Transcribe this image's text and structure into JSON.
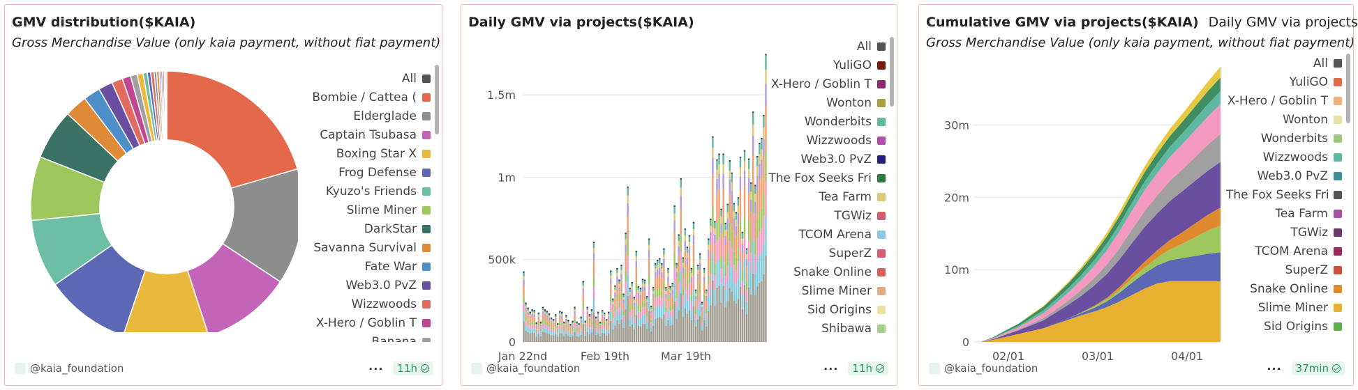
{
  "charts": {
    "gmv_distribution": {
      "title": "GMV distribution($KAIA)",
      "subtitle": "Gross Merchandise Value (only kaia payment, without fiat payment)",
      "legend": [
        {
          "label": "All",
          "color": "#555555"
        },
        {
          "label": "Bombie / Cattea (",
          "color": "#e4694a"
        },
        {
          "label": "Elderglade",
          "color": "#8e8e8e"
        },
        {
          "label": "Captain Tsubasa",
          "color": "#c364b8"
        },
        {
          "label": "Boxing Star X",
          "color": "#e8b93c"
        },
        {
          "label": "Frog Defense",
          "color": "#5d68b5"
        },
        {
          "label": "Kyuzo's Friends",
          "color": "#6cbfa5"
        },
        {
          "label": "Slime Miner",
          "color": "#9dc75c"
        },
        {
          "label": "DarkStar",
          "color": "#3a7265"
        },
        {
          "label": "Savanna Survival",
          "color": "#df8a36"
        },
        {
          "label": "Fate War",
          "color": "#4d8fc9"
        },
        {
          "label": "Web3.0 PvZ",
          "color": "#6a4fa0"
        },
        {
          "label": "Wizzwoods",
          "color": "#e06b5f"
        },
        {
          "label": "X-Hero / Goblin T",
          "color": "#c04690"
        },
        {
          "label": "Banana",
          "color": "#a0a0a0"
        }
      ],
      "footer": {
        "handle": "@kaia_foundation",
        "badge": "11h"
      }
    },
    "daily_gmv": {
      "title": "Daily GMV via projects($KAIA)",
      "legend": [
        {
          "label": "All",
          "color": "#555555"
        },
        {
          "label": "YuliGO",
          "color": "#7a1a10"
        },
        {
          "label": "X-Hero / Goblin T",
          "color": "#8c2a6a"
        },
        {
          "label": "Wonton",
          "color": "#a8a040"
        },
        {
          "label": "Wonderbits",
          "color": "#5fb8a0"
        },
        {
          "label": "Wizzwoods",
          "color": "#b04fa8"
        },
        {
          "label": "Web3.0 PvZ",
          "color": "#22237e"
        },
        {
          "label": "The Fox Seeks Fri",
          "color": "#2e7a3a"
        },
        {
          "label": "Tea Farm",
          "color": "#e0c878"
        },
        {
          "label": "TGWiz",
          "color": "#cf5f6f"
        },
        {
          "label": "TCOM Arena",
          "color": "#8ec8e6"
        },
        {
          "label": "SuperZ",
          "color": "#d85a70"
        },
        {
          "label": "Snake Online",
          "color": "#d9605a"
        },
        {
          "label": "Slime Miner",
          "color": "#e3aa82"
        },
        {
          "label": "Sid Origins",
          "color": "#ede0a0"
        },
        {
          "label": "Shibawa",
          "color": "#a7cc8a"
        }
      ],
      "chart_data": {
        "type": "bar",
        "stacked": true,
        "x_ticks": [
          "Jan 22nd",
          "Feb 19th",
          "Mar 19th"
        ],
        "y_ticks": [
          "0",
          "500k",
          "1m",
          "1.5m"
        ],
        "ylim": [
          0,
          1750000
        ],
        "series_colors": [
          "#9e9a8e",
          "#7fcbe0",
          "#f49ac0",
          "#9dc75c",
          "#f0a070",
          "#b39ddb",
          "#e0c878",
          "#5fb8a0"
        ],
        "totals": [
          420000,
          230000,
          200000,
          175000,
          190000,
          185000,
          110000,
          170000,
          115000,
          205000,
          190000,
          180000,
          165000,
          140000,
          130000,
          160000,
          105000,
          180000,
          175000,
          115000,
          155000,
          125000,
          100000,
          120000,
          205000,
          115000,
          105000,
          145000,
          360000,
          120000,
          205000,
          160000,
          190000,
          600000,
          145000,
          175000,
          115000,
          185000,
          170000,
          130000,
          175000,
          425000,
          255000,
          335000,
          440000,
          370000,
          460000,
          285000,
          655000,
          935000,
          320000,
          355000,
          265000,
          545000,
          330000,
          320000,
          375000,
          370000,
          270000,
          620000,
          210000,
          325000,
          470000,
          490000,
          500000,
          470000,
          560000,
          325000,
          440000,
          330000,
          350000,
          820000,
          470000,
          645000,
          985000,
          505000,
          680000,
          570000,
          640000,
          440000,
          720000,
          310000,
          460000,
          530000,
          235000,
          440000,
          310000,
          620000,
          740000,
          1240000,
          725000,
          1100000,
          1135000,
          800000,
          1135000,
          715000,
          830000,
          1095000,
          1020000,
          835000,
          780000,
          870000,
          1115000,
          660000,
          1155000,
          560000,
          1105000,
          960000,
          1390000,
          945000,
          1120000,
          1200000,
          1230000,
          1370000,
          1740000
        ]
      },
      "footer": {
        "handle": "@kaia_foundation",
        "badge": "11h"
      }
    },
    "cumulative_gmv": {
      "title": "Cumulative GMV via projects($KAIA)",
      "tab": "Daily GMV via projects",
      "subtitle": "Gross Merchandise Value (only kaia payment, without fiat payment)",
      "legend": [
        {
          "label": "All",
          "color": "#555555"
        },
        {
          "label": "YuliGO",
          "color": "#e4694a"
        },
        {
          "label": "X-Hero / Goblin T",
          "color": "#f0b07a"
        },
        {
          "label": "Wonton",
          "color": "#e8e0a0"
        },
        {
          "label": "Wonderbits",
          "color": "#9dc77a"
        },
        {
          "label": "Wizzwoods",
          "color": "#5fb8a0"
        },
        {
          "label": "Web3.0 PvZ",
          "color": "#3e8e92"
        },
        {
          "label": "The Fox Seeks Fri",
          "color": "#555555"
        },
        {
          "label": "Tea Farm",
          "color": "#a34fa8"
        },
        {
          "label": "TGWiz",
          "color": "#6a3a6a"
        },
        {
          "label": "TCOM Arena",
          "color": "#9a2a5a"
        },
        {
          "label": "SuperZ",
          "color": "#d0503a"
        },
        {
          "label": "Snake Online",
          "color": "#e08a30"
        },
        {
          "label": "Slime Miner",
          "color": "#e8b030"
        },
        {
          "label": "Sid Origins",
          "color": "#5fae4a"
        }
      ],
      "chart_data": {
        "type": "area",
        "stacked": true,
        "x_ticks": [
          "02/01",
          "03/01",
          "04/01"
        ],
        "y_ticks": [
          "0",
          "10m",
          "20m",
          "30m"
        ],
        "ylim": [
          0,
          37000000
        ],
        "x_points": 20,
        "series": [
          {
            "color": "#e8b030",
            "values": [
              0,
              300000,
              700000,
              1100000,
              1500000,
              1900000,
              2500000,
              3100000,
              3700000,
              4200000,
              4800000,
              5600000,
              6500000,
              7400000,
              8100000,
              8400000,
              8400000,
              8400000,
              8400000,
              8400000
            ]
          },
          {
            "color": "#5d68b5",
            "values": [
              0,
              0,
              0,
              0,
              0,
              0,
              100000,
              200000,
              300000,
              500000,
              800000,
              1200000,
              1700000,
              2100000,
              2500000,
              2900000,
              3200000,
              3500000,
              3800000,
              4000000
            ]
          },
          {
            "color": "#9dc75c",
            "values": [
              0,
              0,
              0,
              0,
              0,
              0,
              0,
              0,
              100000,
              200000,
              300000,
              400000,
              600000,
              800000,
              1100000,
              1500000,
              2000000,
              2600000,
              3200000,
              3700000
            ]
          },
          {
            "color": "#e08a30",
            "values": [
              0,
              0,
              0,
              0,
              0,
              0,
              0,
              0,
              0,
              100000,
              200000,
              400000,
              600000,
              800000,
              1000000,
              1300000,
              1600000,
              1900000,
              2200000,
              2500000
            ]
          },
          {
            "color": "#6a4fa0",
            "values": [
              0,
              100000,
              300000,
              500000,
              800000,
              1100000,
              1500000,
              1900000,
              2300000,
              2800000,
              3300000,
              3800000,
              4300000,
              4800000,
              5100000,
              5400000,
              5700000,
              5900000,
              6100000,
              6300000
            ]
          },
          {
            "color": "#a0a0a0",
            "values": [
              0,
              0,
              100000,
              100000,
              200000,
              300000,
              400000,
              600000,
              800000,
              1000000,
              1300000,
              1600000,
              1900000,
              2200000,
              2500000,
              2800000,
              3000000,
              3300000,
              3600000,
              3900000
            ]
          },
          {
            "color": "#f49ac0",
            "values": [
              0,
              100000,
              200000,
              300000,
              500000,
              700000,
              900000,
              1100000,
              1400000,
              1700000,
              2000000,
              2300000,
              2600000,
              2900000,
              3100000,
              3300000,
              3500000,
              3700000,
              3900000,
              4100000
            ]
          },
          {
            "color": "#5fb8a0",
            "values": [
              0,
              50000,
              100000,
              200000,
              300000,
              400000,
              500000,
              600000,
              700000,
              800000,
              900000,
              1000000,
              1100000,
              1200000,
              1300000,
              1400000,
              1500000,
              1600000,
              1700000,
              1800000
            ]
          },
          {
            "color": "#3e8e62",
            "values": [
              0,
              100000,
              200000,
              300000,
              400000,
              500000,
              600000,
              700000,
              800000,
              900000,
              1000000,
              1100000,
              1200000,
              1300000,
              1400000,
              1500000,
              1600000,
              1700000,
              1800000,
              1900000
            ]
          },
          {
            "color": "#e8c840",
            "values": [
              0,
              0,
              0,
              0,
              100000,
              100000,
              200000,
              200000,
              300000,
              400000,
              500000,
              600000,
              700000,
              800000,
              900000,
              1000000,
              1100000,
              1200000,
              1300000,
              1500000
            ]
          }
        ]
      },
      "footer": {
        "handle": "@kaia_foundation",
        "badge": "37min"
      }
    }
  }
}
